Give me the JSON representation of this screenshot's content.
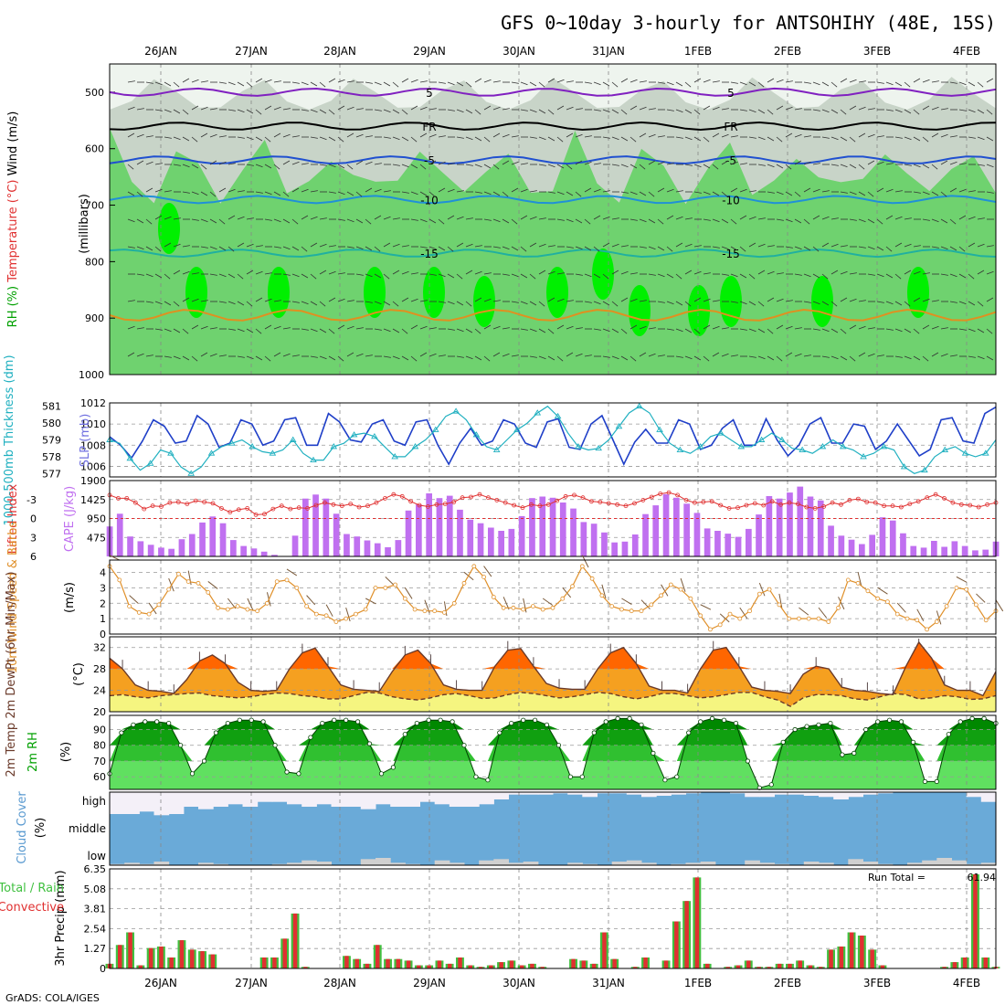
{
  "title": "GFS 0~10day 3-hourly for ANTSOHIHY (48E, 15S)",
  "credit": "GrADS: COLA/IGES",
  "run_total_label": "Run Total =",
  "run_total_value": "61.94",
  "colors": {
    "rh_light": "#c8d4c8",
    "rh_mid": "#6fd26f",
    "rh_high": "#00f000",
    "slp": "#1f3fc8",
    "thickness": "#20b0c0",
    "cape": "#c070f0",
    "lifted": "#e03030",
    "wind10": "#e0902a",
    "temp_fill": "#f5a020",
    "temp_hot": "#ff6600",
    "dew_fill": "#f5f580",
    "rh2m": "#00a000",
    "cloud": "#6aaad8",
    "cloud_low": "#d0d0d0",
    "precip_total": "#40c040",
    "precip_conv": "#e03030"
  },
  "chart_data": {
    "x_tick_labels": [
      "26JAN",
      "27JAN",
      "28JAN",
      "29JAN",
      "30JAN",
      "31JAN",
      "1FEB",
      "2FEB",
      "3FEB",
      "4FEB"
    ],
    "panels": [
      {
        "id": "upper_air",
        "type": "heatmap",
        "ylabel_parts": [
          "RH (%)",
          "Temperature (°C)",
          "Wind (m/s)"
        ],
        "ylabel_units": "(millibars)",
        "y_ticks": [
          500,
          600,
          700,
          800,
          900,
          1000
        ],
        "ylim": [
          450,
          1000
        ],
        "contour_labels": [
          {
            "text": "5",
            "color": "#8020c0",
            "level": 500
          },
          {
            "text": "FR",
            "color": "#000000",
            "level": 560
          },
          {
            "text": "-5",
            "color": "#2050d0",
            "level": 620
          },
          {
            "text": "-10",
            "color": "#2090d8",
            "level": 690
          },
          {
            "text": "-15",
            "color": "#20b0a0",
            "level": 785
          }
        ]
      },
      {
        "id": "slp_thickness",
        "type": "line",
        "ylabel_left": "1000-500mb Thickness (dm)",
        "ylabel_right": "SLP (mb)",
        "y_ticks_left": [
          577,
          578,
          579,
          580,
          581
        ],
        "y_ticks_right": [
          1006,
          1008,
          1010,
          1012
        ],
        "ylim_slp": [
          1005,
          1012
        ]
      },
      {
        "id": "cape_li",
        "type": "bar",
        "ylabel_left": "Lifted Index",
        "ylabel_right": "CAPE (J/kg)",
        "y_ticks_left": [
          -3,
          0,
          3,
          6
        ],
        "y_ticks_right": [
          475,
          950,
          1425,
          1900
        ],
        "ylim": [
          0,
          1900
        ]
      },
      {
        "id": "wind10m",
        "type": "line",
        "ylabel": "10m Wind Speed & Barbs",
        "ylabel_units": "(m/s)",
        "y_ticks": [
          0,
          1,
          2,
          3,
          4
        ],
        "ylim": [
          0,
          4.8
        ]
      },
      {
        "id": "temp2m",
        "type": "area",
        "ylabel": "2m Temp 2m DewPt (6hr Min/Max)",
        "ylabel_units": "(°C)",
        "y_ticks": [
          20,
          24,
          28,
          32
        ],
        "ylim": [
          20,
          34
        ]
      },
      {
        "id": "rh2m",
        "type": "area",
        "ylabel": "2m RH",
        "ylabel_units": "(%)",
        "y_ticks": [
          60,
          70,
          80,
          90
        ],
        "ylim": [
          52,
          99
        ]
      },
      {
        "id": "cloud",
        "type": "area",
        "ylabel": "Cloud Cover",
        "ylabel_units": "(%)",
        "levels": [
          "high",
          "middle",
          "low"
        ]
      },
      {
        "id": "precip",
        "type": "bar",
        "ylabel_left": "Total / Rain",
        "ylabel_left2": "Convective",
        "ylabel": "3hr Precip (mm)",
        "y_ticks": [
          0,
          1.27,
          2.54,
          3.81,
          5.08,
          6.35
        ],
        "y_tick_labels": [
          "0",
          "1.27",
          "2.54",
          "3.81",
          "5.08",
          "6.35"
        ],
        "ylim": [
          0,
          6.35
        ]
      }
    ],
    "series": {
      "slp": [
        1008.8,
        1008.0,
        1006.8,
        1008.4,
        1010.4,
        1009.8,
        1008.2,
        1008.4,
        1010.8,
        1010.0,
        1007.8,
        1008.2,
        1010.4,
        1010.0,
        1008.0,
        1008.4,
        1010.4,
        1010.6,
        1008.0,
        1008.0,
        1011.0,
        1010.2,
        1008.5,
        1008.3,
        1010.0,
        1010.4,
        1008.4,
        1008.0,
        1010.2,
        1010.4,
        1008.0,
        1006.2,
        1008.2,
        1009.6,
        1008.0,
        1008.4,
        1010.4,
        1010.0,
        1008.2,
        1007.8,
        1010.2,
        1010.5,
        1007.8,
        1007.6,
        1010.0,
        1010.8,
        1008.5,
        1006.2,
        1008.3,
        1009.5,
        1008.2,
        1008.2,
        1010.4,
        1010.0,
        1007.6,
        1008.0,
        1009.6,
        1010.4,
        1008.0,
        1008.0,
        1010.5,
        1008.5,
        1007.0,
        1008.0,
        1010.0,
        1010.6,
        1008.2,
        1008.2,
        1010.0,
        1009.8,
        1007.6,
        1008.4,
        1010.0,
        1008.5,
        1007.0,
        1007.6,
        1010.4,
        1010.6,
        1008.4,
        1008.2,
        1011.0,
        1011.6
      ],
      "thickness": [
        579.0,
        578.8,
        577.9,
        577.2,
        577.6,
        578.4,
        578.2,
        577.4,
        577.0,
        577.4,
        578.2,
        578.6,
        578.8,
        579.0,
        578.6,
        578.3,
        578.2,
        578.4,
        579.0,
        578.2,
        577.8,
        577.8,
        578.6,
        578.8,
        579.3,
        579.4,
        579.2,
        578.6,
        578.0,
        578.0,
        578.6,
        579.0,
        579.6,
        580.4,
        580.7,
        580.2,
        579.3,
        578.6,
        578.4,
        579.0,
        579.6,
        580.0,
        580.6,
        581.0,
        580.4,
        579.4,
        578.6,
        578.4,
        578.5,
        579.0,
        579.8,
        580.6,
        581.0,
        580.6,
        579.6,
        578.8,
        578.4,
        578.2,
        578.6,
        579.2,
        579.4,
        579.0,
        578.6,
        578.6,
        579.0,
        579.4,
        579.0,
        578.5,
        578.4,
        578.2,
        578.6,
        579.0,
        578.6,
        578.4,
        578.0,
        578.2,
        578.6,
        578.4,
        577.4,
        577.0,
        577.2,
        578.0,
        578.4,
        578.6,
        578.2,
        578.0,
        578.2,
        579.0
      ],
      "cape": [
        750,
        1070,
        500,
        380,
        290,
        220,
        190,
        430,
        560,
        850,
        1000,
        830,
        410,
        260,
        200,
        120,
        40,
        0,
        520,
        1450,
        1550,
        1450,
        1070,
        560,
        500,
        400,
        330,
        230,
        410,
        1150,
        1300,
        1580,
        1460,
        1520,
        1170,
        920,
        830,
        720,
        640,
        690,
        1010,
        1460,
        1500,
        1470,
        1350,
        1200,
        860,
        820,
        600,
        350,
        370,
        550,
        1060,
        1280,
        1560,
        1470,
        1320,
        1090,
        700,
        640,
        570,
        490,
        690,
        1050,
        1510,
        1450,
        1600,
        1750,
        1500,
        1400,
        770,
        520,
        420,
        310,
        540,
        980,
        900,
        580,
        260,
        220,
        390,
        240,
        380,
        260,
        150,
        170,
        370
      ],
      "lifted": [
        -3.7,
        -3.2,
        -3.2,
        -2.5,
        -1.5,
        -2.0,
        -1.9,
        -2.5,
        -2.6,
        -2.3,
        -2.8,
        -2.6,
        -2.4,
        -1.6,
        -1.0,
        -1.4,
        -1.6,
        -0.6,
        -0.7,
        -1.5,
        -2.0,
        -1.5,
        -1.7,
        -1.6,
        -2.1,
        -2.5,
        -2.2,
        -2.0,
        -2.3,
        -1.8,
        -2.0,
        -2.5,
        -3.2,
        -3.8,
        -3.5,
        -2.7,
        -2.1,
        -1.9,
        -2.2,
        -2.3,
        -2.6,
        -3.3,
        -3.4,
        -3.8,
        -3.3,
        -2.9,
        -2.5,
        -2.1,
        -1.7,
        -2.2,
        -2.0,
        -2.2,
        -2.8,
        -3.5,
        -3.7,
        -3.3,
        -2.7,
        -2.6,
        -2.4,
        -2.2,
        -2.0,
        -2.4,
        -2.9,
        -3.4,
        -3.9,
        -4.1,
        -3.7,
        -2.9,
        -2.5,
        -2.6,
        -2.7,
        -2.1,
        -1.6,
        -1.7,
        -2.1,
        -2.4,
        -2.1,
        -2.7,
        -2.2,
        -2.5,
        -2.3,
        -1.8,
        -1.6,
        -1.9,
        -2.5,
        -2.2,
        -2.9,
        -3.1,
        -2.6,
        -2.5,
        -2.0,
        -2.0,
        -1.8,
        -2.3,
        -2.7,
        -3.3,
        -3.8,
        -3.2,
        -2.5,
        -2.2,
        -2.1,
        -1.8,
        -2.2,
        -2.5
      ],
      "wind10": [
        4.4,
        3.5,
        1.8,
        1.4,
        1.3,
        1.9,
        2.9,
        3.9,
        3.4,
        3.3,
        2.7,
        1.7,
        1.6,
        1.8,
        1.6,
        1.5,
        2.0,
        3.4,
        3.5,
        3.0,
        1.8,
        1.3,
        1.2,
        0.8,
        1.0,
        1.3,
        1.6,
        3.0,
        3.0,
        3.2,
        2.3,
        1.6,
        1.5,
        1.5,
        1.4,
        2.0,
        3.3,
        4.4,
        3.7,
        2.4,
        1.7,
        1.7,
        1.6,
        1.8,
        1.6,
        1.7,
        2.3,
        3.1,
        4.4,
        3.6,
        2.5,
        1.8,
        1.6,
        1.5,
        1.5,
        1.9,
        2.5,
        3.2,
        2.9,
        2.3,
        1.2,
        0.3,
        0.6,
        1.3,
        1.0,
        1.5,
        2.6,
        2.9,
        1.9,
        1.0,
        1.0,
        1.0,
        1.0,
        0.8,
        1.7,
        3.5,
        3.3,
        2.8,
        2.3,
        2.1,
        1.3,
        1.0,
        0.9,
        0.3,
        0.8,
        1.8,
        3.0,
        2.9,
        1.9,
        0.9,
        1.5
      ],
      "temp": [
        30.0,
        28.0,
        25.0,
        24.0,
        23.8,
        23.4,
        26.0,
        29.5,
        30.6,
        29.0,
        25.5,
        24.0,
        23.8,
        24.0,
        28.0,
        31.0,
        31.9,
        28.5,
        25.0,
        24.2,
        24.0,
        23.8,
        27.5,
        30.6,
        31.5,
        29.0,
        25.0,
        24.2,
        24.0,
        24.0,
        28.5,
        31.5,
        31.8,
        28.5,
        25.3,
        24.4,
        24.2,
        24.2,
        28.0,
        31.0,
        32.0,
        29.0,
        24.8,
        24.0,
        24.0,
        23.5,
        28.0,
        31.5,
        32.0,
        28.5,
        24.6,
        24.0,
        23.8,
        23.4,
        27.0,
        28.5,
        28.0,
        24.6,
        24.0,
        23.8,
        23.4,
        23.2,
        28.5,
        33.0,
        30.0,
        25.0,
        24.0,
        24.0,
        23.0,
        27.5
      ],
      "dewpt": [
        23.0,
        23.2,
        22.8,
        22.6,
        23.0,
        23.2,
        23.4,
        23.5,
        23.0,
        22.8,
        22.6,
        22.8,
        23.2,
        23.5,
        23.4,
        23.0,
        22.8,
        22.4,
        22.4,
        23.0,
        23.6,
        23.5,
        22.8,
        22.4,
        22.2,
        22.6,
        23.2,
        23.4,
        23.0,
        22.5,
        22.6,
        23.2,
        23.6,
        23.4,
        23.0,
        22.6,
        22.8,
        23.2,
        23.6,
        23.4,
        22.8,
        22.4,
        22.8,
        23.4,
        23.4,
        23.0,
        22.6,
        22.8,
        23.2,
        23.6,
        23.6,
        22.8,
        22.2,
        21.0,
        22.6,
        23.2,
        23.2,
        23.0,
        22.4,
        22.2,
        22.8,
        23.4,
        23.2,
        22.4,
        22.6,
        23.0,
        22.8,
        22.3,
        22.4,
        23.0
      ],
      "rh2m": [
        62,
        88,
        93,
        95,
        95,
        94,
        80,
        62,
        70,
        88,
        94,
        96,
        96,
        95,
        80,
        63,
        62,
        85,
        94,
        96,
        96,
        95,
        81,
        62,
        66,
        87,
        94,
        96,
        96,
        95,
        80,
        60,
        58,
        88,
        94,
        96,
        96,
        93,
        80,
        60,
        60,
        88,
        95,
        97,
        97,
        93,
        75,
        58,
        60,
        88,
        95,
        97,
        96,
        94,
        70,
        53,
        55,
        82,
        90,
        92,
        93,
        94,
        74,
        75,
        90,
        95,
        96,
        95,
        82,
        57,
        57,
        87,
        95,
        97,
        97,
        94
      ],
      "cloud_high": [
        10,
        10,
        20,
        5,
        10,
        40,
        30,
        40,
        50,
        40,
        60,
        60,
        50,
        40,
        50,
        40,
        40,
        30,
        50,
        40,
        40,
        60,
        50,
        40,
        40,
        50,
        70,
        90,
        90,
        90,
        95,
        90,
        80,
        95,
        95,
        90,
        80,
        85,
        90,
        95,
        100,
        100,
        95,
        80,
        80,
        90,
        90,
        85,
        80,
        70,
        80,
        90,
        95,
        100,
        100,
        100,
        100,
        100,
        80,
        60
      ],
      "cloud_low": [
        5,
        10,
        5,
        15,
        0,
        0,
        10,
        5,
        0,
        0,
        0,
        5,
        10,
        20,
        15,
        0,
        0,
        25,
        30,
        10,
        5,
        0,
        20,
        10,
        0,
        20,
        25,
        10,
        15,
        0,
        0,
        10,
        5,
        0,
        15,
        20,
        10,
        0,
        5,
        10,
        15,
        0,
        0,
        20,
        10,
        5,
        0,
        15,
        10,
        0,
        25,
        15,
        5,
        0,
        10,
        20,
        30,
        20,
        5,
        10
      ],
      "precip": [
        0.3,
        1.5,
        2.3,
        0.2,
        1.3,
        1.4,
        0.7,
        1.8,
        1.2,
        1.1,
        0.9,
        0,
        0,
        0,
        0,
        0.7,
        0.7,
        1.9,
        3.5,
        0.1,
        0,
        0,
        0,
        0.8,
        0.6,
        0.3,
        1.5,
        0.6,
        0.6,
        0.5,
        0.2,
        0.2,
        0.5,
        0.3,
        0.7,
        0.2,
        0.1,
        0.2,
        0.4,
        0.5,
        0.2,
        0.3,
        0.1,
        0,
        0,
        0.6,
        0.5,
        0.3,
        2.3,
        0.6,
        0,
        0.1,
        0.7,
        0,
        0.5,
        3.0,
        4.3,
        5.8,
        0.3,
        0,
        0.1,
        0.2,
        0.5,
        0.1,
        0.1,
        0.3,
        0.3,
        0.5,
        0.2,
        0.1,
        1.2,
        1.4,
        2.3,
        2.1,
        1.2,
        0.2,
        0,
        0,
        0,
        0,
        0,
        0.1,
        0.4,
        0.7,
        6.0,
        0.7,
        0.1
      ]
    }
  }
}
